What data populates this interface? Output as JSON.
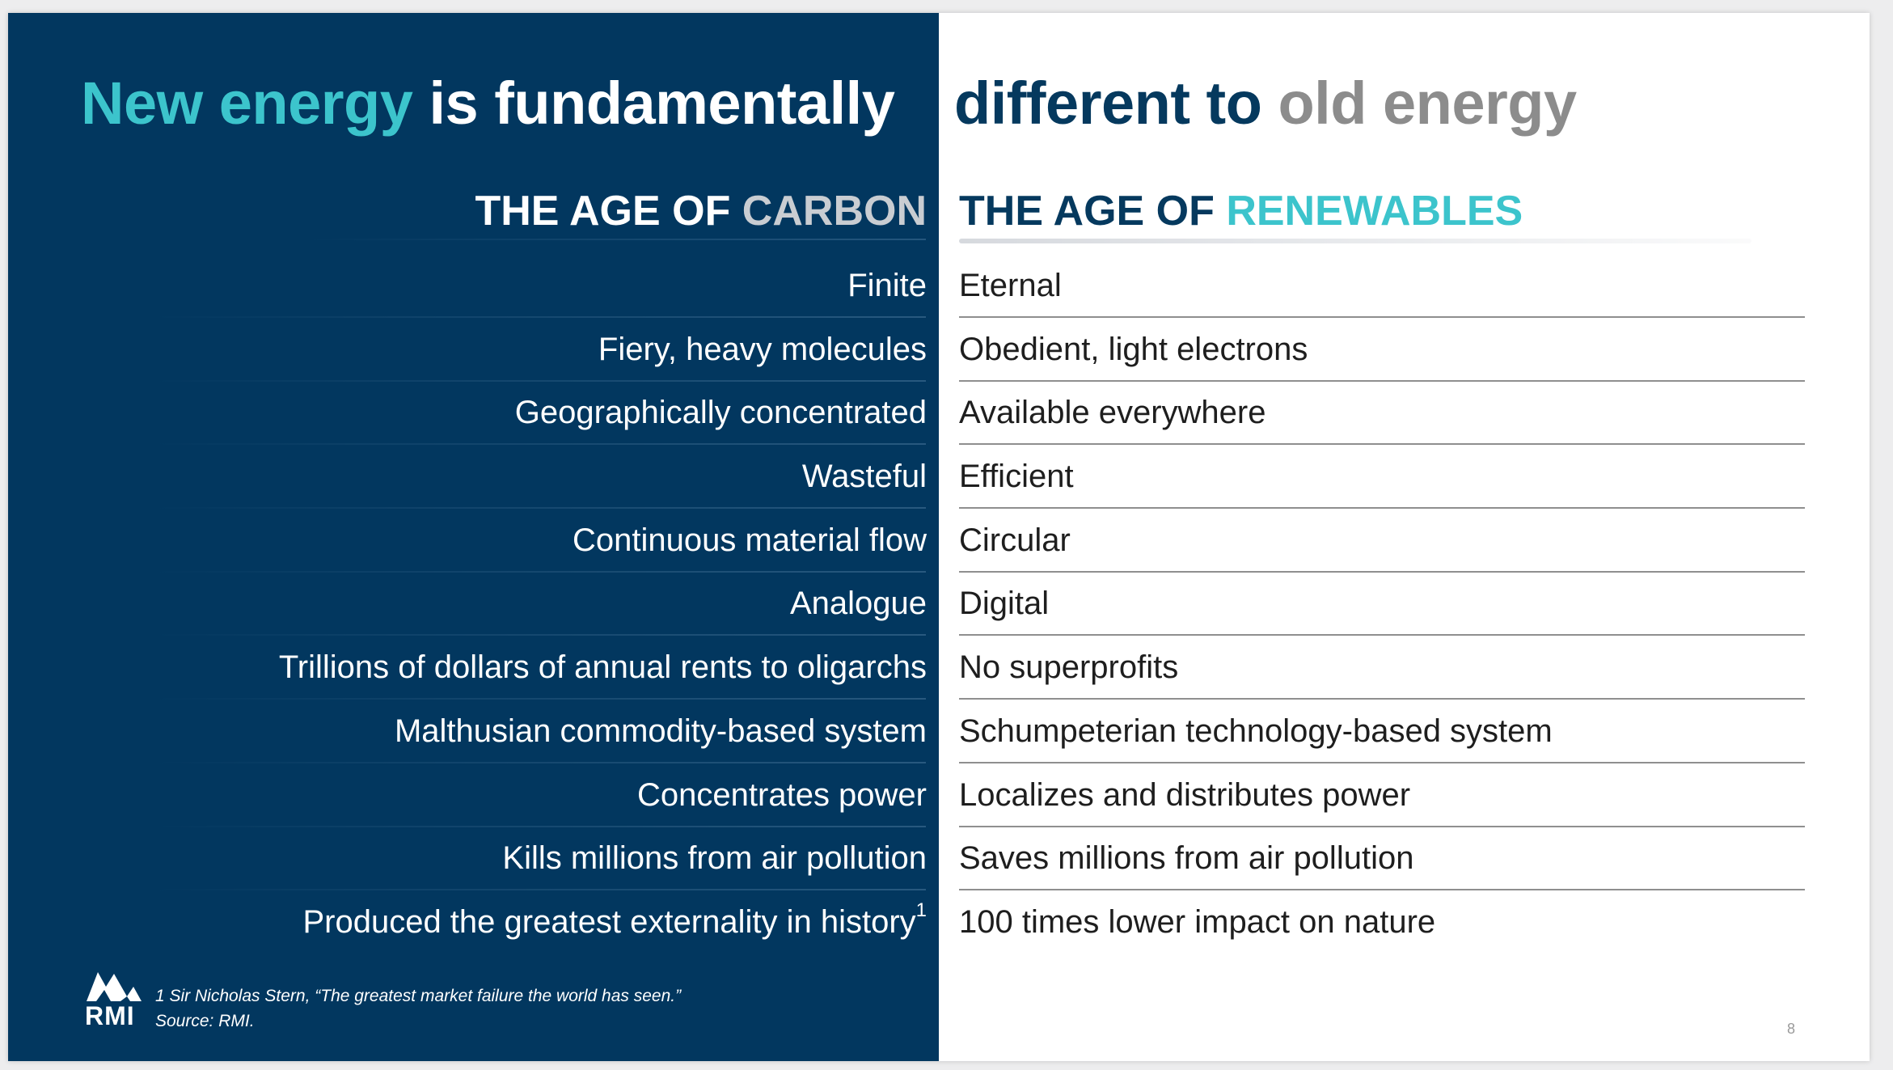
{
  "title": {
    "part1": "New energy",
    "part2": " is fundamentally",
    "part3": "different to",
    "part4": " old energy"
  },
  "left_header": {
    "prefix": "THE AGE OF ",
    "highlight": "CARBON"
  },
  "right_header": {
    "prefix": "THE AGE OF ",
    "highlight": "RENEWABLES"
  },
  "rows": [
    {
      "carbon": "Finite",
      "renewables": "Eternal"
    },
    {
      "carbon": "Fiery, heavy molecules",
      "renewables": "Obedient, light electrons"
    },
    {
      "carbon": "Geographically concentrated",
      "renewables": "Available everywhere"
    },
    {
      "carbon": "Wasteful",
      "renewables": "Efficient"
    },
    {
      "carbon": "Continuous material flow",
      "renewables": "Circular"
    },
    {
      "carbon": "Analogue",
      "renewables": "Digital"
    },
    {
      "carbon": "Trillions of dollars of annual rents to oligarchs",
      "renewables": "No superprofits"
    },
    {
      "carbon": "Malthusian commodity-based system",
      "renewables": "Schumpeterian technology-based system"
    },
    {
      "carbon": "Concentrates power",
      "renewables": "Localizes and distributes power"
    },
    {
      "carbon": "Kills millions from air pollution",
      "renewables": "Saves millions from air pollution"
    },
    {
      "carbon": "Produced the greatest externality in history",
      "carbon_sup": "1",
      "renewables": "100 times lower impact on nature"
    }
  ],
  "footnote": {
    "line1": "1  Sir Nicholas Stern, “The greatest market failure the world has seen.”",
    "line2": "Source: RMI."
  },
  "logo": {
    "text": "RMI",
    "icon": "rmi-mountain-logo"
  },
  "page_number": "8",
  "colors": {
    "navy": "#02375f",
    "teal": "#3cc4cc",
    "grey": "#8c8c8c",
    "dark_text": "#05395e"
  }
}
